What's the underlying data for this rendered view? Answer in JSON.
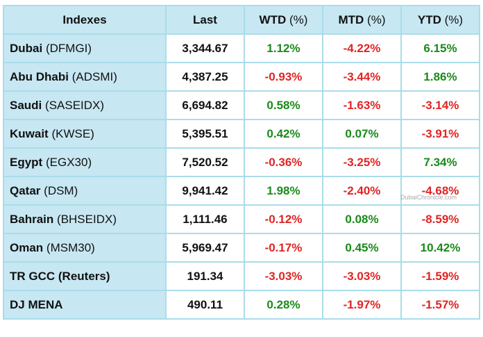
{
  "header": {
    "indexes": "Indexes",
    "last": "Last",
    "wtd": "WTD",
    "mtd": "MTD",
    "ytd": "YTD",
    "pct": "(%)"
  },
  "rows": [
    {
      "name": "Dubai",
      "code": "(DFMGI)",
      "last": "3,344.67",
      "wtd": "1.12%",
      "mtd": "-4.22%",
      "ytd": "6.15%"
    },
    {
      "name": "Abu Dhabi",
      "code": "(ADSMI)",
      "last": "4,387.25",
      "wtd": "-0.93%",
      "mtd": "-3.44%",
      "ytd": "1.86%"
    },
    {
      "name": "Saudi",
      "code": "(SASEIDX)",
      "last": "6,694.82",
      "wtd": "0.58%",
      "mtd": "-1.63%",
      "ytd": "-3.14%"
    },
    {
      "name": "Kuwait",
      "code": "(KWSE)",
      "last": "5,395.51",
      "wtd": "0.42%",
      "mtd": "0.07%",
      "ytd": "-3.91%"
    },
    {
      "name": "Egypt",
      "code": "(EGX30)",
      "last": "7,520.52",
      "wtd": "-0.36%",
      "mtd": "-3.25%",
      "ytd": "7.34%"
    },
    {
      "name": "Qatar",
      "code": "(DSM)",
      "last": "9,941.42",
      "wtd": "1.98%",
      "mtd": "-2.40%",
      "ytd": "-4.68%"
    },
    {
      "name": "Bahrain",
      "code": "(BHSEIDX)",
      "last": "1,111.46",
      "wtd": "-0.12%",
      "mtd": "0.08%",
      "ytd": "-8.59%"
    },
    {
      "name": "Oman",
      "code": "(MSM30)",
      "last": "5,969.47",
      "wtd": "-0.17%",
      "mtd": "0.45%",
      "ytd": "10.42%"
    },
    {
      "name": "TR GCC (Reuters)",
      "code": "",
      "last": "191.34",
      "wtd": "-3.03%",
      "mtd": "-3.03%",
      "ytd": "-1.59%"
    },
    {
      "name": "DJ MENA",
      "code": "",
      "last": "490.11",
      "wtd": "0.28%",
      "mtd": "-1.97%",
      "ytd": "-1.57%"
    }
  ],
  "colors": {
    "positive": "#1a8a1a",
    "negative": "#e02424",
    "header_bg": "#c7e7f2",
    "border": "#a9dcea"
  },
  "watermark": "DubaiChronicle.com"
}
